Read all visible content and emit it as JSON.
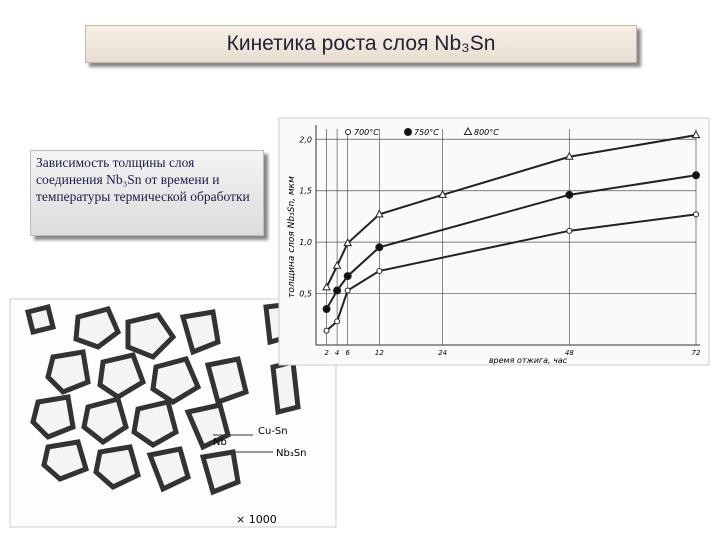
{
  "title": "Кинетика роста слоя Nb₃Sn",
  "caption": "Зависимость толщины слоя соединения Nb₃Sn от времени и температуры термической обработки",
  "micrograph": {
    "labels": [
      "Cu-Sn",
      "Nb",
      "Nb₃Sn"
    ],
    "magnification": "× 1000"
  },
  "chart_data": {
    "type": "line",
    "y_label": "толщина слоя Nb₃Sn, мкм",
    "x_label": "время отжига, час",
    "xlim": [
      0,
      72
    ],
    "xticks": [
      2,
      4,
      6,
      12,
      24,
      48,
      72
    ],
    "ylim": [
      0,
      2.1
    ],
    "yticks": [
      {
        "value": 0.5,
        "label": "0,5"
      },
      {
        "value": 1.0,
        "label": "1,0"
      },
      {
        "value": 1.5,
        "label": "1,5"
      },
      {
        "value": 2.0,
        "label": "2,0"
      }
    ],
    "grid": true,
    "series": [
      {
        "name": "700°C",
        "marker": "open-circle",
        "color": "#222",
        "x": [
          2,
          4,
          6,
          12,
          48,
          72
        ],
        "values": [
          0.14,
          0.23,
          0.53,
          0.72,
          1.11,
          1.27
        ]
      },
      {
        "name": "750°C",
        "marker": "dot",
        "color": "#222",
        "x": [
          2,
          4,
          6,
          12,
          48,
          72
        ],
        "values": [
          0.35,
          0.53,
          0.67,
          0.95,
          1.46,
          1.65
        ]
      },
      {
        "name": "800°C",
        "marker": "triangle",
        "color": "#222",
        "x": [
          2,
          4,
          6,
          12,
          24,
          48,
          72
        ],
        "values": [
          0.56,
          0.77,
          0.99,
          1.27,
          1.46,
          1.83,
          2.04
        ]
      }
    ]
  }
}
